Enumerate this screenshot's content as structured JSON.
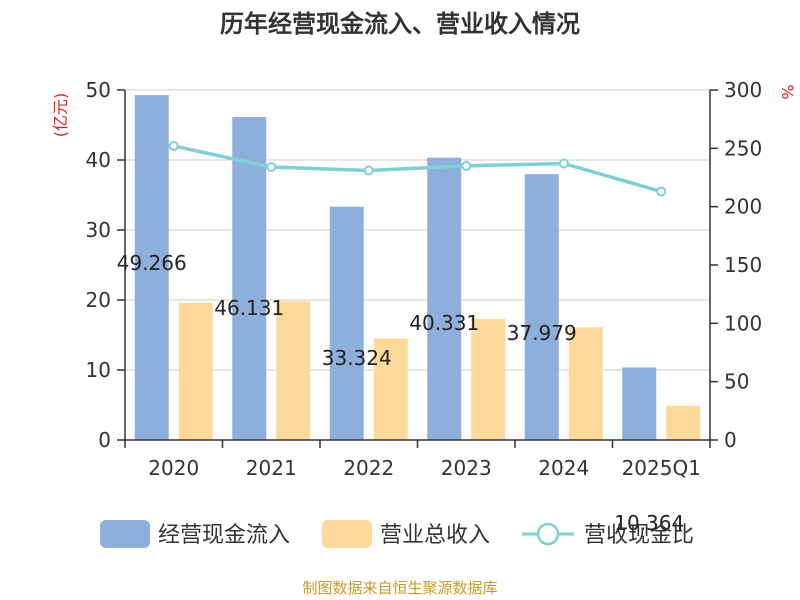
{
  "chart_data": {
    "type": "bar",
    "title": "历年经营现金流入、营业收入情况",
    "categories": [
      "2020",
      "2021",
      "2022",
      "2023",
      "2024",
      "2025Q1"
    ],
    "y_left": {
      "unit": "(亿元)",
      "ylim": [
        0,
        50
      ],
      "ticks": [
        "0",
        "10",
        "20",
        "30",
        "40",
        "50"
      ]
    },
    "y_right": {
      "unit": "%",
      "ylim": [
        0,
        300
      ],
      "ticks": [
        "0",
        "50",
        "100",
        "150",
        "200",
        "250",
        "300"
      ]
    },
    "series": [
      {
        "name": "经营现金流入",
        "kind": "bar",
        "axis": "left",
        "color": "#8eaedb",
        "values": [
          49.266,
          46.131,
          33.324,
          40.331,
          37.979,
          10.364
        ],
        "labels": [
          "49.266",
          "46.131",
          "33.324",
          "40.331",
          "37.979",
          "10.364"
        ]
      },
      {
        "name": "营业总收入",
        "kind": "bar",
        "axis": "left",
        "color": "#fdd99b",
        "values": [
          19.6,
          19.8,
          14.5,
          17.3,
          16.1,
          4.9
        ]
      },
      {
        "name": "营收现金比",
        "kind": "line",
        "axis": "right",
        "color": "#7fd0d4",
        "values": [
          252,
          234,
          231,
          235,
          237,
          213
        ]
      }
    ],
    "grid": true,
    "legend": "bottom"
  },
  "footer": {
    "source": "制图数据来自恒生聚源数据库"
  }
}
